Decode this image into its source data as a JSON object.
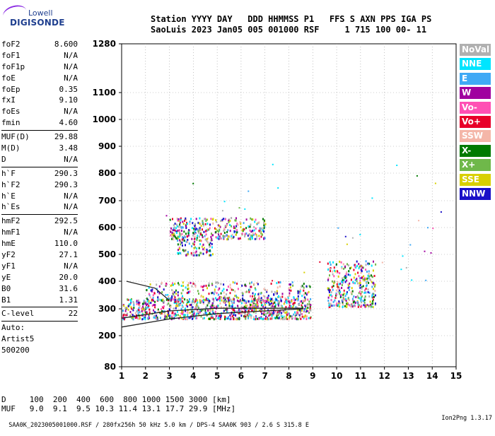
{
  "logo": {
    "line1": "Lowell",
    "line2": "DIGISONDE"
  },
  "header": {
    "line1": "Station YYYY DAY   DDD HHMMSS P1   FFS S AXN PPS IGA PS",
    "line2": "SaoLuis 2023 Jan05 005 001000 RSF     1 715 100 00- 11"
  },
  "params": {
    "group1": [
      {
        "name": "foF2",
        "value": "8.600"
      },
      {
        "name": "foF1",
        "value": "N/A"
      },
      {
        "name": "foF1p",
        "value": "N/A"
      },
      {
        "name": "foE",
        "value": "N/A"
      },
      {
        "name": "foEp",
        "value": "0.35"
      },
      {
        "name": "fxI",
        "value": "9.10"
      },
      {
        "name": "foEs",
        "value": "N/A"
      },
      {
        "name": "fmin",
        "value": "4.60"
      }
    ],
    "group2": [
      {
        "name": "MUF(D)",
        "value": "29.88"
      },
      {
        "name": "M(D)",
        "value": "3.48"
      },
      {
        "name": "D",
        "value": "N/A"
      }
    ],
    "group3": [
      {
        "name": "h`F",
        "value": "290.3"
      },
      {
        "name": "h`F2",
        "value": "290.3"
      },
      {
        "name": "h`E",
        "value": "N/A"
      },
      {
        "name": "h`Es",
        "value": "N/A"
      }
    ],
    "group4": [
      {
        "name": "hmF2",
        "value": "292.5"
      },
      {
        "name": "hmF1",
        "value": "N/A"
      },
      {
        "name": "hmE",
        "value": "110.0"
      },
      {
        "name": "yF2",
        "value": "27.1"
      },
      {
        "name": "yF1",
        "value": "N/A"
      },
      {
        "name": "yE",
        "value": "20.0"
      },
      {
        "name": "B0",
        "value": "31.6"
      },
      {
        "name": "B1",
        "value": "1.31"
      }
    ],
    "group5": [
      {
        "name": "C-level",
        "value": "22"
      }
    ],
    "auto_lines": [
      "Auto:",
      "Artist5",
      "500200"
    ]
  },
  "legend": [
    {
      "label": "NoVal",
      "bg": "#b0b0b0",
      "fg": "#ffffff"
    },
    {
      "label": "NNE",
      "bg": "#00e5ff",
      "fg": "#ffffff"
    },
    {
      "label": "E",
      "bg": "#3fa9f5",
      "fg": "#ffffff"
    },
    {
      "label": "W",
      "bg": "#a0009f",
      "fg": "#ffffff"
    },
    {
      "label": "Vo-",
      "bg": "#ff50b4",
      "fg": "#ffffff"
    },
    {
      "label": "Vo+",
      "bg": "#e8002a",
      "fg": "#ffffff"
    },
    {
      "label": "SSW",
      "bg": "#f4b6a8",
      "fg": "#ffffff"
    },
    {
      "label": "X-",
      "bg": "#007a00",
      "fg": "#ffffff"
    },
    {
      "label": "X+",
      "bg": "#6fb84a",
      "fg": "#ffffff"
    },
    {
      "label": "SSE",
      "bg": "#d8d000",
      "fg": "#ffffff"
    },
    {
      "label": "NNW",
      "bg": "#1a10c8",
      "fg": "#ffffff"
    }
  ],
  "footer": {
    "line1": "D     100  200  400  600  800 1000 1500 3000 [km]",
    "line2": "MUF   9.0  9.1  9.5 10.3 11.4 13.1 17.7 29.9 [MHz]"
  },
  "bottom": {
    "left": "SAA0K_2023005001000.RSF / 280fx256h 50 kHz 5.0 km / DPS-4 SAA0K 903 / 2.6 S 315.8 E",
    "right": "Ion2Png 1.3.17"
  },
  "chart_data": {
    "type": "scatter",
    "x_ticks": [
      1,
      2,
      3,
      4,
      5,
      6,
      7,
      8,
      9,
      10,
      11,
      12,
      13,
      14,
      15
    ],
    "y_ticks": [
      80,
      200,
      300,
      400,
      500,
      600,
      700,
      800,
      900,
      1000,
      1100,
      1280
    ],
    "xlim": [
      1,
      15
    ],
    "ylim": [
      80,
      1280
    ],
    "y_scale": "nonlinear (compressed at top)",
    "grid": "dotted",
    "clusters": [
      {
        "name": "F2 o-trace",
        "x_range": [
          1.0,
          8.9
        ],
        "y_range": [
          265,
          340
        ],
        "density": "high"
      },
      {
        "name": "F2 upper spread",
        "x_range": [
          2.0,
          8.9
        ],
        "y_range": [
          330,
          400
        ],
        "density": "medium"
      },
      {
        "name": "x-trace region",
        "x_range": [
          9.6,
          11.6
        ],
        "y_range": [
          310,
          480
        ],
        "density": "medium"
      },
      {
        "name": "2nd hop",
        "x_range": [
          3.0,
          7.0
        ],
        "y_range": [
          560,
          640
        ],
        "density": "medium"
      },
      {
        "name": "2nd hop lower",
        "x_range": [
          3.3,
          4.8
        ],
        "y_range": [
          500,
          560
        ],
        "density": "low"
      }
    ],
    "fitted_traces": [
      {
        "name": "lower profile",
        "points": [
          [
            1.0,
            232
          ],
          [
            3.0,
            262
          ],
          [
            5.0,
            282
          ],
          [
            7.0,
            292
          ],
          [
            8.6,
            300
          ]
        ]
      },
      {
        "name": "upper profile",
        "points": [
          [
            1.0,
            265
          ],
          [
            3.0,
            292
          ],
          [
            5.0,
            302
          ],
          [
            7.0,
            302
          ],
          [
            8.6,
            302
          ]
        ]
      },
      {
        "name": "leading edge",
        "points": [
          [
            1.2,
            400
          ],
          [
            2.4,
            375
          ],
          [
            3.0,
            330
          ]
        ]
      }
    ]
  }
}
